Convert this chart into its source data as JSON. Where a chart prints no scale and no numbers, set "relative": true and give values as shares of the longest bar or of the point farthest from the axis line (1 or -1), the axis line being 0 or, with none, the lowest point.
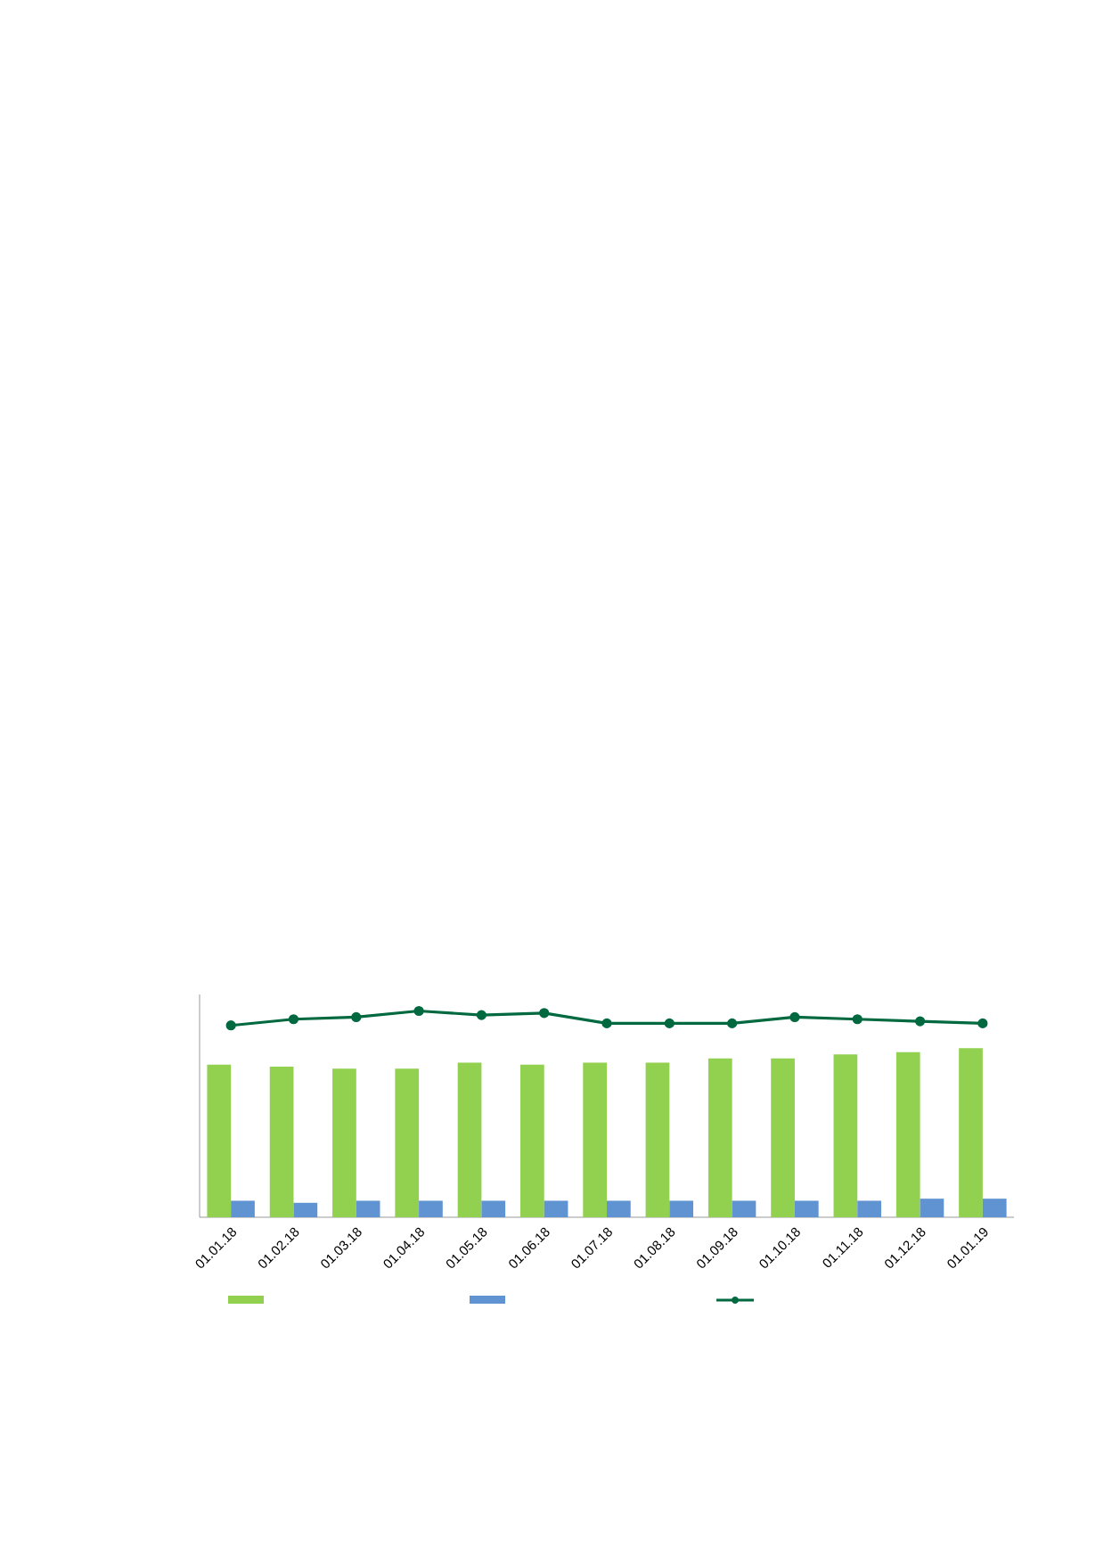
{
  "chart_data": {
    "type": "bar",
    "relative": true,
    "categories": [
      "01.01.18",
      "01.02.18",
      "01.03.18",
      "01.04.18",
      "01.05.18",
      "01.06.18",
      "01.07.18",
      "01.08.18",
      "01.09.18",
      "01.10.18",
      "01.11.18",
      "01.12.18",
      "01.01.19"
    ],
    "series": [
      {
        "color": "#92d050",
        "values": [
          0.74,
          0.73,
          0.72,
          0.72,
          0.75,
          0.74,
          0.75,
          0.75,
          0.77,
          0.77,
          0.79,
          0.8,
          0.82
        ]
      },
      {
        "color": "#5f93d2",
        "values": [
          0.08,
          0.07,
          0.08,
          0.08,
          0.08,
          0.08,
          0.08,
          0.08,
          0.08,
          0.08,
          0.08,
          0.09,
          0.09
        ]
      },
      {
        "type": "line",
        "color": "#006940",
        "marker": "circle",
        "values": [
          0.93,
          0.96,
          0.97,
          1.0,
          0.98,
          0.99,
          0.94,
          0.94,
          0.94,
          0.97,
          0.96,
          0.95,
          0.94
        ]
      }
    ]
  }
}
